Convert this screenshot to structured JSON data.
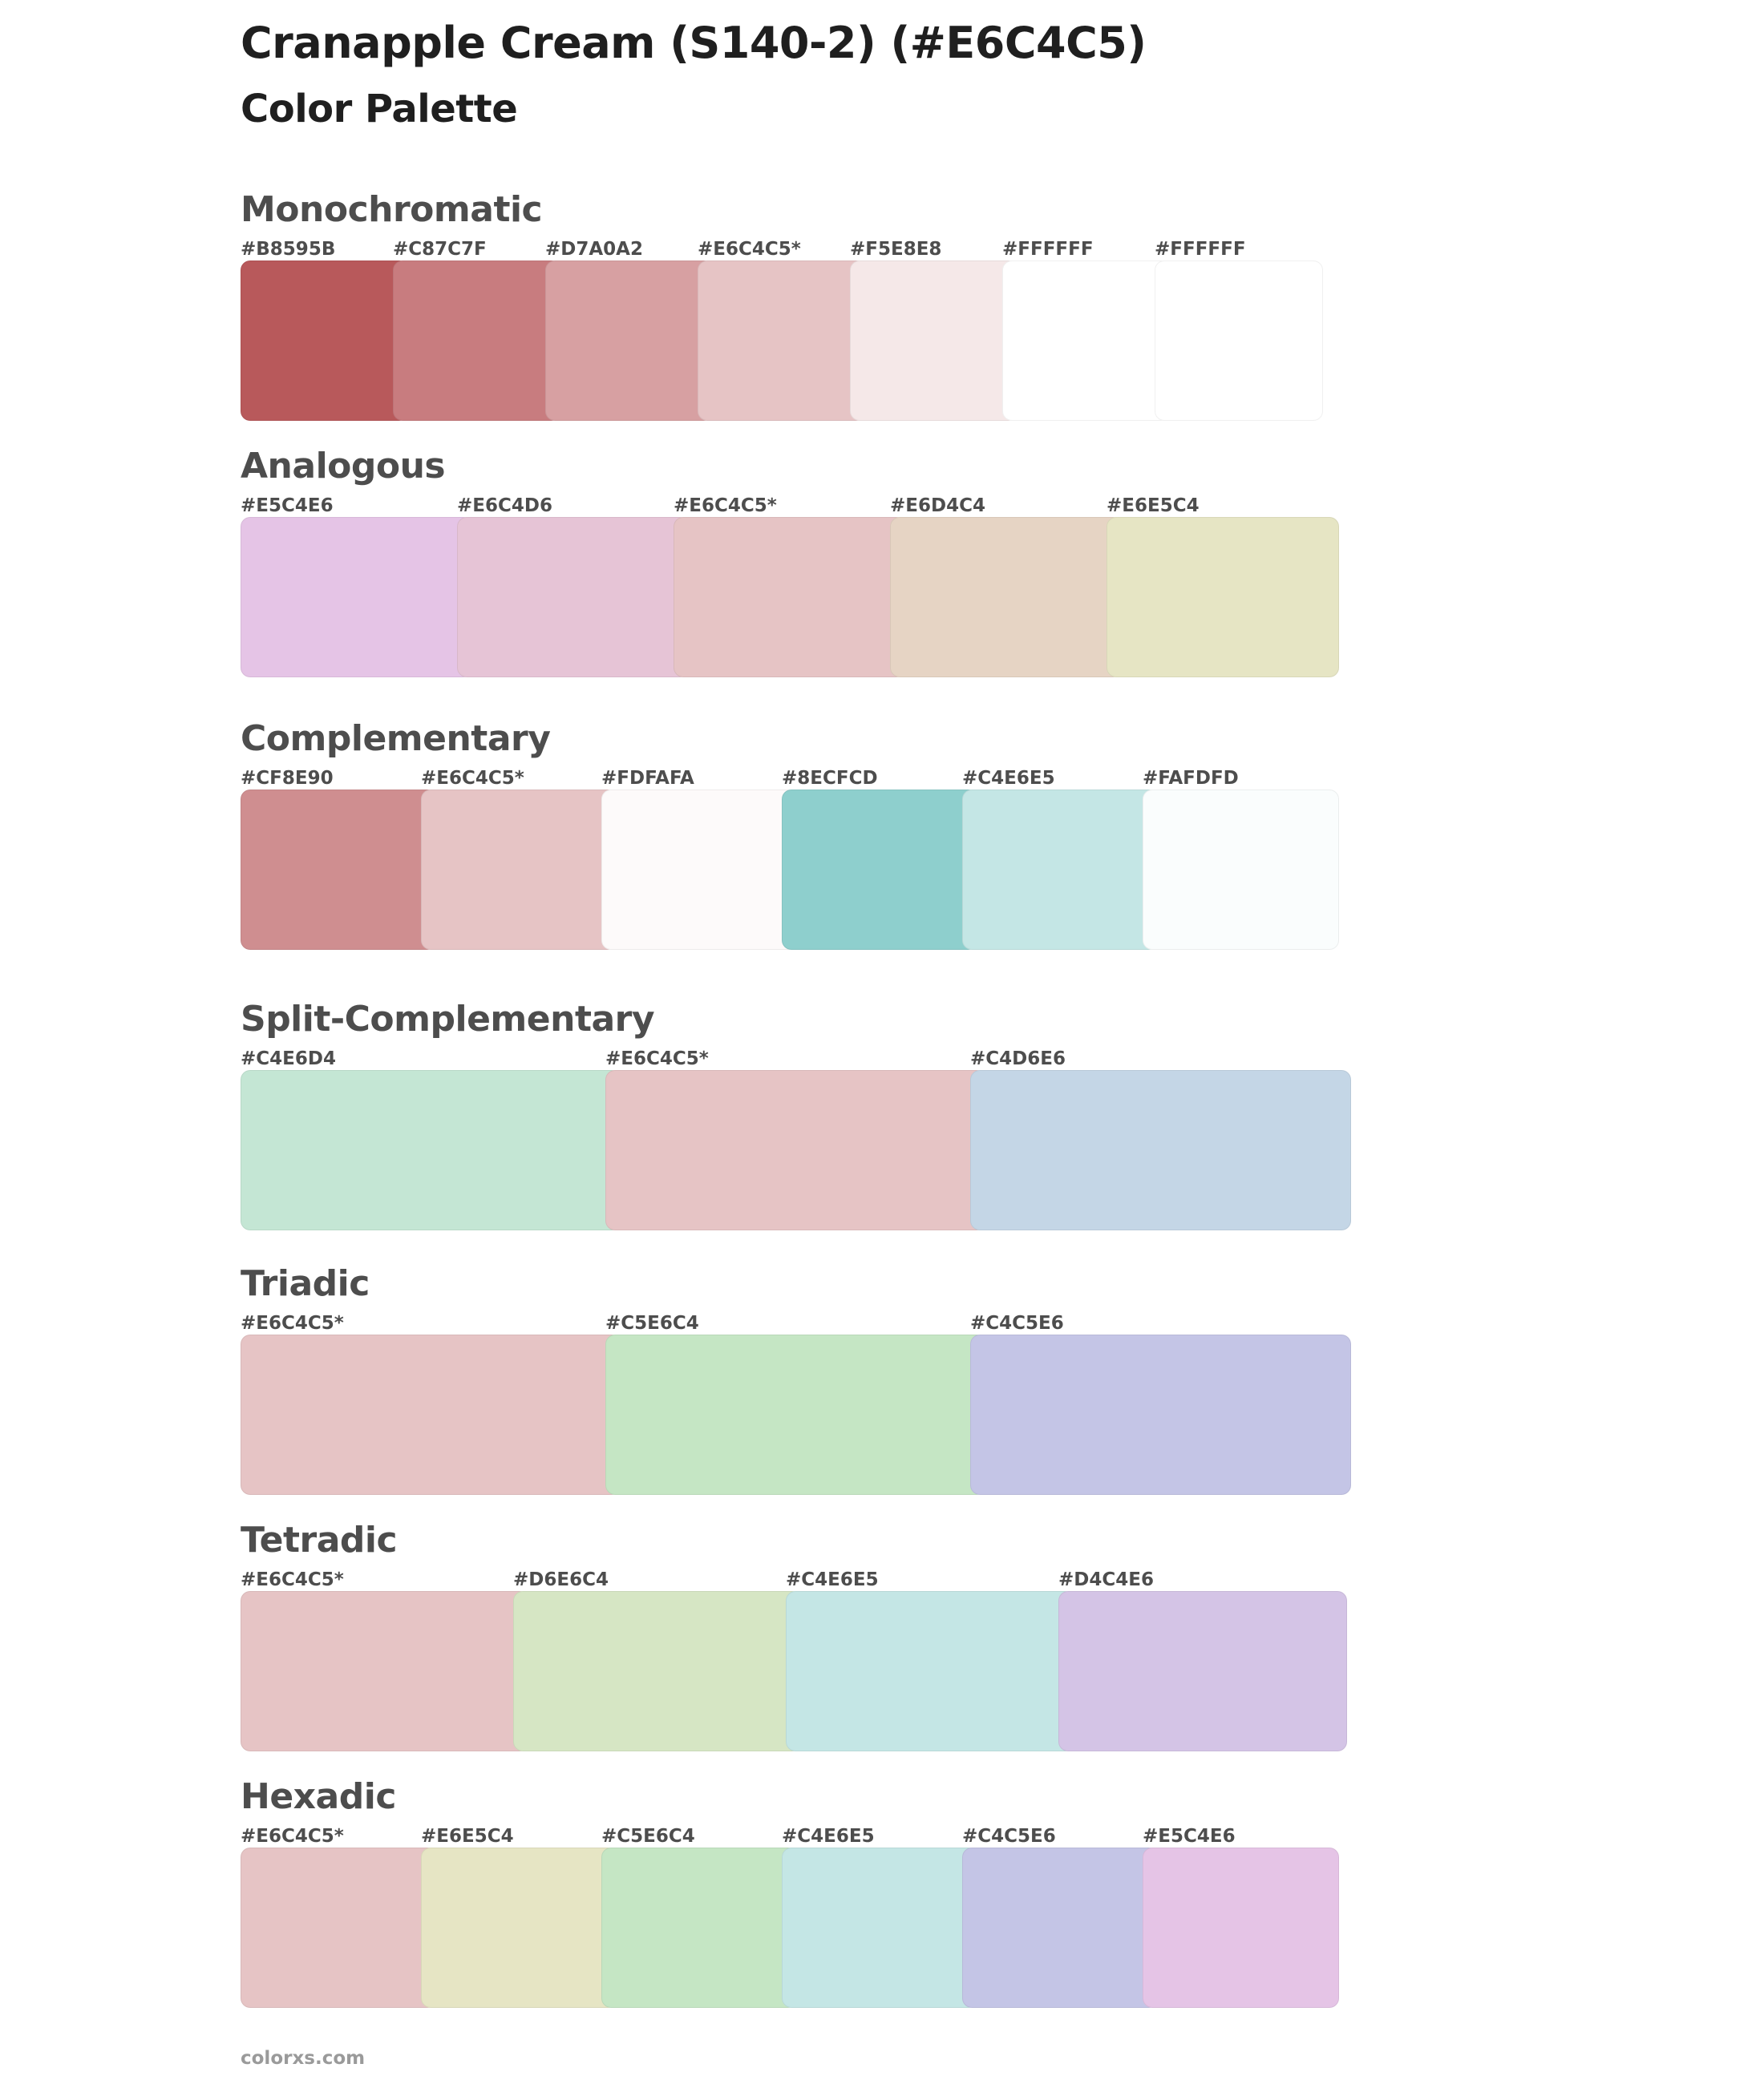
{
  "title": "Cranapple Cream (S140-2) (#E6C4C5)",
  "subtitle": "Color Palette",
  "sections": [
    {
      "name": "Monochromatic",
      "swatches": [
        {
          "label": "#B8595B",
          "color": "#B8595B"
        },
        {
          "label": "#C87C7F",
          "color": "#C87C7F"
        },
        {
          "label": "#D7A0A2",
          "color": "#D7A0A2"
        },
        {
          "label": "#E6C4C5*",
          "color": "#E6C4C5"
        },
        {
          "label": "#F5E8E8",
          "color": "#F5E8E8"
        },
        {
          "label": "#FFFFFF",
          "color": "#FFFFFF"
        },
        {
          "label": "#FFFFFF",
          "color": "#FFFFFF"
        }
      ]
    },
    {
      "name": "Analogous",
      "swatches": [
        {
          "label": "#E5C4E6",
          "color": "#E5C4E6"
        },
        {
          "label": "#E6C4D6",
          "color": "#E6C4D6"
        },
        {
          "label": "#E6C4C5*",
          "color": "#E6C4C5"
        },
        {
          "label": "#E6D4C4",
          "color": "#E6D4C4"
        },
        {
          "label": "#E6E5C4",
          "color": "#E6E5C4"
        }
      ]
    },
    {
      "name": "Complementary",
      "swatches": [
        {
          "label": "#CF8E90",
          "color": "#CF8E90"
        },
        {
          "label": "#E6C4C5*",
          "color": "#E6C4C5"
        },
        {
          "label": "#FDFAFA",
          "color": "#FDFAFA"
        },
        {
          "label": "#8ECFCD",
          "color": "#8ECFCD"
        },
        {
          "label": "#C4E6E5",
          "color": "#C4E6E5"
        },
        {
          "label": "#FAFDFD",
          "color": "#FAFDFD"
        }
      ]
    },
    {
      "name": "Split-Complementary",
      "swatches": [
        {
          "label": "#C4E6D4",
          "color": "#C4E6D4"
        },
        {
          "label": "#E6C4C5*",
          "color": "#E6C4C5"
        },
        {
          "label": "#C4D6E6",
          "color": "#C4D6E6"
        }
      ]
    },
    {
      "name": "Triadic",
      "swatches": [
        {
          "label": "#E6C4C5*",
          "color": "#E6C4C5"
        },
        {
          "label": "#C5E6C4",
          "color": "#C5E6C4"
        },
        {
          "label": "#C4C5E6",
          "color": "#C4C5E6"
        }
      ]
    },
    {
      "name": "Tetradic",
      "swatches": [
        {
          "label": "#E6C4C5*",
          "color": "#E6C4C5"
        },
        {
          "label": "#D6E6C4",
          "color": "#D6E6C4"
        },
        {
          "label": "#C4E6E5",
          "color": "#C4E6E5"
        },
        {
          "label": "#D4C4E6",
          "color": "#D4C4E6"
        }
      ]
    },
    {
      "name": "Hexadic",
      "swatches": [
        {
          "label": "#E6C4C5*",
          "color": "#E6C4C5"
        },
        {
          "label": "#E6E5C4",
          "color": "#E6E5C4"
        },
        {
          "label": "#C5E6C4",
          "color": "#C5E6C4"
        },
        {
          "label": "#C4E6E5",
          "color": "#C4E6E5"
        },
        {
          "label": "#C4C5E6",
          "color": "#C4C5E6"
        },
        {
          "label": "#E5C4E6",
          "color": "#E5C4E6"
        }
      ]
    }
  ],
  "footer": "colorxs.com"
}
